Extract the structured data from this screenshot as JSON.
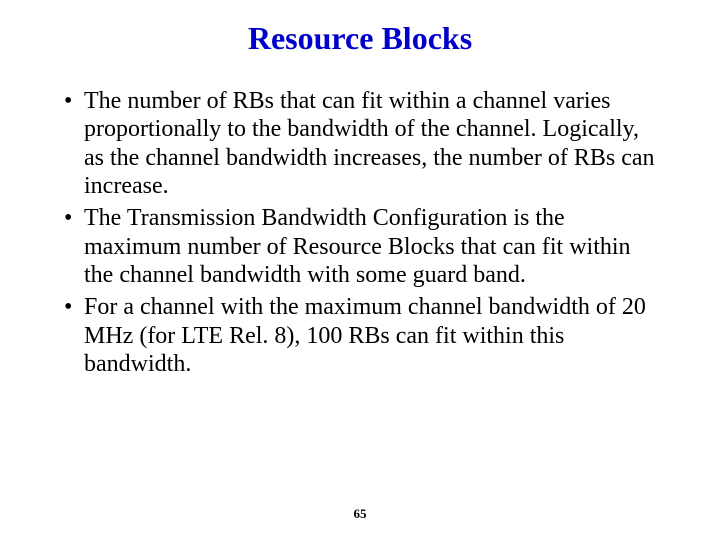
{
  "title": {
    "text": "Resource Blocks",
    "color": "#0000cc",
    "fontsize": 32
  },
  "bullets": [
    "The number of RBs that can fit within a channel varies proportionally to the bandwidth of the channel. Logically, as the channel bandwidth increases, the number of RBs can increase.",
    "The Transmission Bandwidth Configuration is the maximum number of Resource Blocks that can fit within the channel bandwidth with some guard band.",
    "For a channel with the maximum channel bandwidth of 20 MHz (for LTE Rel. 8), 100 RBs can fit within this bandwidth."
  ],
  "body": {
    "color": "#000000",
    "fontsize": 24,
    "line_height": 1.18
  },
  "page_number": {
    "value": "65",
    "fontsize": 13,
    "color": "#000000"
  },
  "background_color": "#ffffff"
}
